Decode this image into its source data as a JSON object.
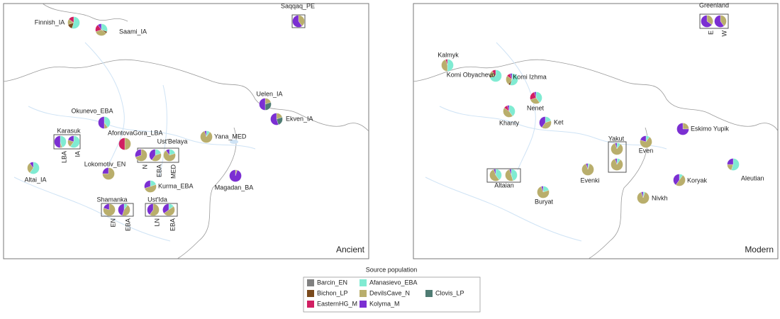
{
  "legend": {
    "title": "Source population",
    "sources": [
      {
        "name": "Barcin_EN",
        "color": "#808080"
      },
      {
        "name": "Afanasievo_EBA",
        "color": "#80ebd2"
      },
      {
        "name": "Bichon_LP",
        "color": "#7a4a1c"
      },
      {
        "name": "DevilsCave_N",
        "color": "#b9ae6c"
      },
      {
        "name": "Clovis_LP",
        "color": "#4f7c73"
      },
      {
        "name": "EasternHG_M",
        "color": "#d11f62"
      },
      {
        "name": "Kolyma_M",
        "color": "#7b2fd2"
      }
    ]
  },
  "panels": [
    {
      "corner_label": "Ancient",
      "sites": [
        {
          "label": "Finnish_IA",
          "pies": [
            {
              "values": [
                0,
                55,
                15,
                15,
                0,
                15,
                0
              ]
            }
          ]
        },
        {
          "label": "Saami_IA",
          "pies": [
            {
              "values": [
                0,
                30,
                5,
                35,
                0,
                20,
                10
              ]
            }
          ]
        },
        {
          "label": "Saqqaq_PE",
          "pies": [
            {
              "values": [
                0,
                0,
                0,
                40,
                0,
                0,
                60
              ]
            }
          ]
        },
        {
          "label": "Uelen_IA",
          "pies": [
            {
              "values": [
                0,
                0,
                0,
                20,
                30,
                0,
                50
              ]
            }
          ]
        },
        {
          "label": "Ekven_IA",
          "pies": [
            {
              "values": [
                0,
                0,
                0,
                20,
                25,
                0,
                55
              ]
            }
          ]
        },
        {
          "label": "Yana_MED",
          "pies": [
            {
              "values": [
                0,
                10,
                0,
                85,
                0,
                0,
                5
              ]
            }
          ]
        },
        {
          "label": "Magadan_BA",
          "pies": [
            {
              "values": [
                0,
                0,
                0,
                5,
                0,
                0,
                95
              ]
            }
          ]
        },
        {
          "label": "Okunevo_EBA",
          "pies": [
            {
              "values": [
                0,
                40,
                0,
                10,
                0,
                0,
                50
              ]
            }
          ]
        },
        {
          "label": "AfontovaGora_LBA",
          "pies": [
            {
              "values": [
                0,
                0,
                0,
                50,
                0,
                50,
                0
              ]
            }
          ]
        },
        {
          "label": "Karasuk",
          "pies": [
            {
              "label": "LBA",
              "values": [
                0,
                45,
                0,
                5,
                0,
                0,
                50
              ]
            },
            {
              "label": "IA",
              "values": [
                0,
                60,
                0,
                20,
                0,
                0,
                20
              ]
            }
          ]
        },
        {
          "label": "Lokomotiv_EN",
          "pies": [
            {
              "values": [
                0,
                0,
                0,
                75,
                0,
                0,
                25
              ]
            }
          ]
        },
        {
          "label": "Altai_IA",
          "pies": [
            {
              "values": [
                0,
                60,
                0,
                30,
                0,
                0,
                10
              ]
            }
          ]
        },
        {
          "label": "Ust'Belaya",
          "pies": [
            {
              "label": "N",
              "values": [
                0,
                0,
                0,
                70,
                0,
                0,
                30
              ]
            },
            {
              "label": "EBA",
              "values": [
                0,
                20,
                0,
                40,
                0,
                0,
                40
              ]
            },
            {
              "label": "MED",
              "values": [
                0,
                20,
                0,
                70,
                0,
                0,
                10
              ]
            }
          ]
        },
        {
          "label": "Kurma_EBA",
          "pies": [
            {
              "values": [
                0,
                20,
                0,
                50,
                0,
                0,
                30
              ]
            }
          ]
        },
        {
          "label": "Shamanka",
          "pies": [
            {
              "label": "EN",
              "values": [
                0,
                0,
                0,
                80,
                0,
                0,
                20
              ]
            },
            {
              "label": "EBA",
              "values": [
                0,
                10,
                0,
                45,
                0,
                0,
                45
              ]
            }
          ]
        },
        {
          "label": "Ust'Ida",
          "pies": [
            {
              "label": "LN",
              "values": [
                0,
                0,
                0,
                60,
                0,
                0,
                40
              ]
            },
            {
              "label": "EBA",
              "values": [
                0,
                15,
                0,
                50,
                0,
                0,
                35
              ]
            }
          ]
        }
      ]
    },
    {
      "corner_label": "Modern",
      "sites": [
        {
          "label": "Greenland",
          "pies": [
            {
              "label": "E",
              "values": [
                0,
                0,
                0,
                35,
                0,
                0,
                65
              ]
            },
            {
              "label": "W",
              "values": [
                0,
                0,
                0,
                40,
                0,
                0,
                60
              ]
            }
          ]
        },
        {
          "label": "Kalmyk",
          "pies": [
            {
              "values": [
                0,
                50,
                0,
                45,
                0,
                5,
                0
              ]
            }
          ]
        },
        {
          "label": "Komi Obyachevo",
          "pies": [
            {
              "values": [
                0,
                70,
                5,
                15,
                0,
                10,
                0
              ]
            }
          ]
        },
        {
          "label": "Komi Izhma",
          "pies": [
            {
              "values": [
                0,
                55,
                5,
                25,
                0,
                10,
                5
              ]
            }
          ]
        },
        {
          "label": "Nenet",
          "pies": [
            {
              "values": [
                0,
                40,
                0,
                30,
                0,
                25,
                5
              ]
            }
          ]
        },
        {
          "label": "Khanty",
          "pies": [
            {
              "values": [
                0,
                40,
                0,
                45,
                0,
                10,
                5
              ]
            }
          ]
        },
        {
          "label": "Ket",
          "pies": [
            {
              "values": [
                0,
                20,
                0,
                40,
                0,
                0,
                40
              ]
            }
          ]
        },
        {
          "label": "Yakut",
          "pies": [
            {
              "values": [
                0,
                10,
                0,
                85,
                0,
                0,
                5
              ]
            },
            {
              "values": [
                0,
                10,
                0,
                85,
                0,
                0,
                5
              ]
            }
          ]
        },
        {
          "label": "Even",
          "pies": [
            {
              "values": [
                0,
                10,
                0,
                70,
                0,
                0,
                20
              ]
            }
          ]
        },
        {
          "label": "Eskimo Yupik",
          "pies": [
            {
              "values": [
                0,
                0,
                0,
                25,
                0,
                0,
                75
              ]
            }
          ]
        },
        {
          "label": "Aleutian",
          "pies": [
            {
              "values": [
                0,
                55,
                0,
                20,
                0,
                0,
                25
              ]
            }
          ]
        },
        {
          "label": "Altaian",
          "pies": [
            {
              "values": [
                0,
                40,
                0,
                55,
                0,
                0,
                5
              ]
            },
            {
              "values": [
                0,
                45,
                0,
                50,
                0,
                0,
                5
              ]
            }
          ]
        },
        {
          "label": "Evenki",
          "pies": [
            {
              "values": [
                0,
                5,
                0,
                90,
                0,
                0,
                5
              ]
            }
          ]
        },
        {
          "label": "Koryak",
          "pies": [
            {
              "values": [
                0,
                10,
                0,
                50,
                0,
                0,
                40
              ]
            }
          ]
        },
        {
          "label": "Buryat",
          "pies": [
            {
              "values": [
                0,
                20,
                0,
                75,
                0,
                0,
                5
              ]
            }
          ]
        },
        {
          "label": "Nivkh",
          "pies": [
            {
              "values": [
                0,
                5,
                0,
                90,
                0,
                0,
                5
              ]
            }
          ]
        }
      ]
    }
  ]
}
